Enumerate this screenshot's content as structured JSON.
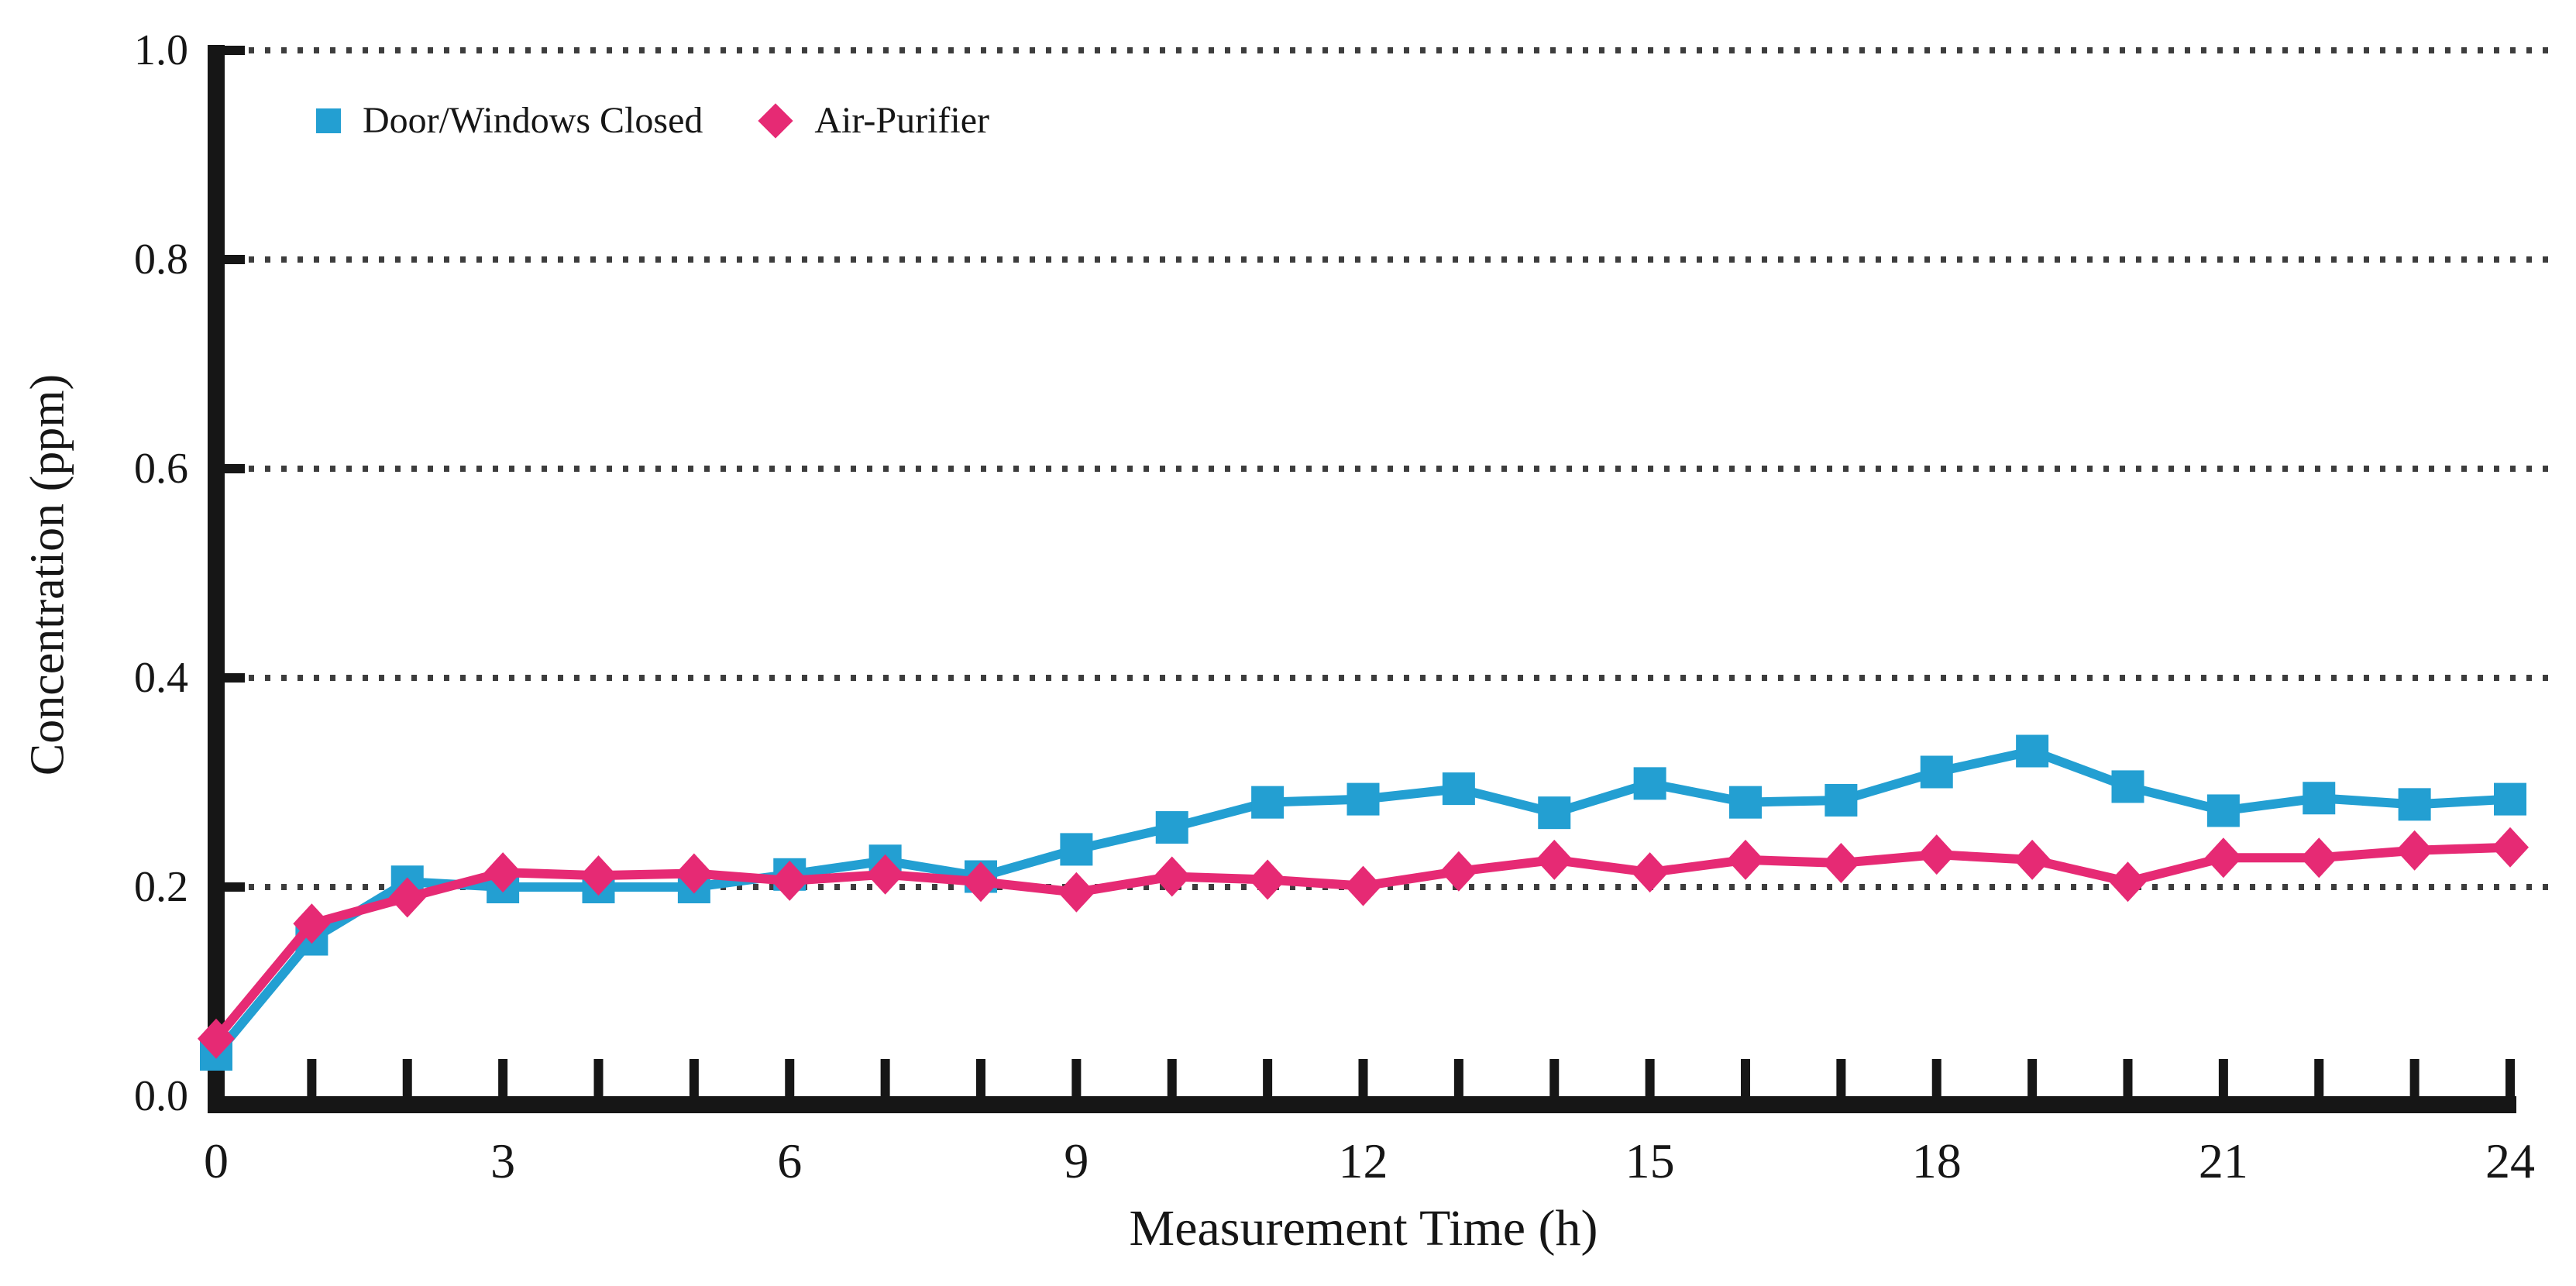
{
  "chart_data": {
    "type": "line",
    "xlabel": "Measurement Time (h)",
    "ylabel": "Concentration (ppm)",
    "x": [
      0,
      1,
      2,
      3,
      4,
      5,
      6,
      7,
      8,
      9,
      10,
      11,
      12,
      13,
      14,
      15,
      16,
      17,
      18,
      19,
      20,
      21,
      22,
      23,
      24
    ],
    "xlim": [
      0,
      24
    ],
    "ylim": [
      0.0,
      1.0
    ],
    "x_major_tick_labels": [
      "0",
      "3",
      "6",
      "9",
      "12",
      "15",
      "18",
      "21",
      "24"
    ],
    "x_major_tick_values": [
      0,
      3,
      6,
      9,
      12,
      15,
      18,
      21,
      24
    ],
    "x_minor_tick_every": 1,
    "y_tick_labels": [
      "0.0",
      "0.2",
      "0.4",
      "0.6",
      "0.8",
      "1.0"
    ],
    "y_tick_values": [
      0.0,
      0.2,
      0.4,
      0.6,
      0.8,
      1.0
    ],
    "grid": "horizontal-dotted",
    "legend_position": "top-left-inside",
    "series": [
      {
        "name": "Door/Windows Closed",
        "marker": "square",
        "color": "#239FD2",
        "values": [
          0.04,
          0.15,
          0.205,
          0.2,
          0.2,
          0.2,
          0.212,
          0.225,
          0.21,
          0.236,
          0.257,
          0.281,
          0.284,
          0.294,
          0.271,
          0.299,
          0.281,
          0.283,
          0.31,
          0.33,
          0.296,
          0.273,
          0.285,
          0.279,
          0.284
        ]
      },
      {
        "name": "Air-Purifier",
        "marker": "diamond",
        "color": "#E62A74",
        "values": [
          0.055,
          0.165,
          0.19,
          0.214,
          0.211,
          0.213,
          0.206,
          0.212,
          0.205,
          0.195,
          0.21,
          0.207,
          0.201,
          0.215,
          0.226,
          0.214,
          0.226,
          0.223,
          0.231,
          0.226,
          0.205,
          0.228,
          0.228,
          0.235,
          0.238
        ]
      }
    ],
    "colors": {
      "axis": "#161616",
      "grid_dots": "#3d3d3d",
      "background": "#ffffff",
      "text": "#161616"
    }
  }
}
